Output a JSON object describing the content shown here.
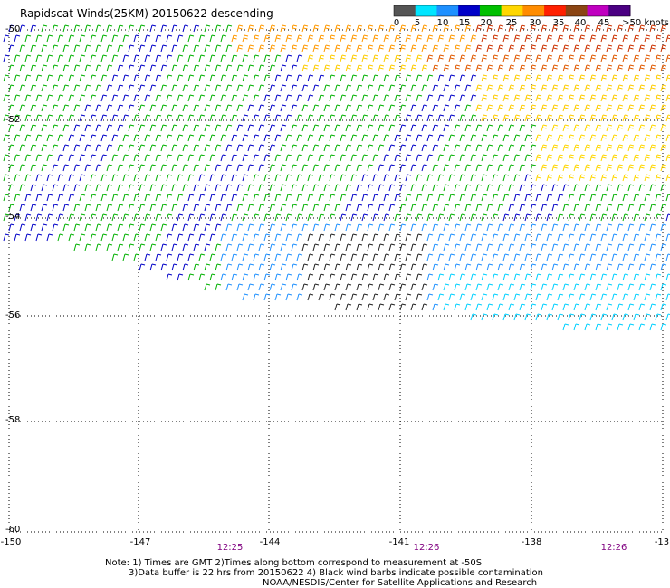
{
  "title": "Rapidscat Winds(25KM) 20150622 descending",
  "legend": {
    "labels": [
      "0",
      "5",
      "10",
      "15",
      "20",
      "25",
      "30",
      "35",
      "40",
      "45",
      ">50 knots"
    ],
    "colors": [
      "#555555",
      "#00e5ff",
      "#1e90ff",
      "#0000c8",
      "#00c000",
      "#ffd700",
      "#ff8c00",
      "#ff2000",
      "#8b4513",
      "#c000c0",
      "#4b0082"
    ]
  },
  "axes": {
    "lat_labels": [
      "-50",
      "-52",
      "-54",
      "-56",
      "-58",
      "-60"
    ],
    "lon_labels": [
      "-150",
      "-147",
      "-144",
      "-141",
      "-138",
      "-13"
    ]
  },
  "times": [
    "12:25",
    "12:26",
    "12:26"
  ],
  "notes": {
    "line1": "Note: 1) Times are GMT 2)Times along bottom correspond to measurement at -50S",
    "line2": "3)Data buffer is 22 hrs from 20150622 4) Black wind barbs indicate possible contamination",
    "line3": "NOAA/NESDIS/Center for Satellite Applications and Research"
  },
  "grid": "dotted"
}
